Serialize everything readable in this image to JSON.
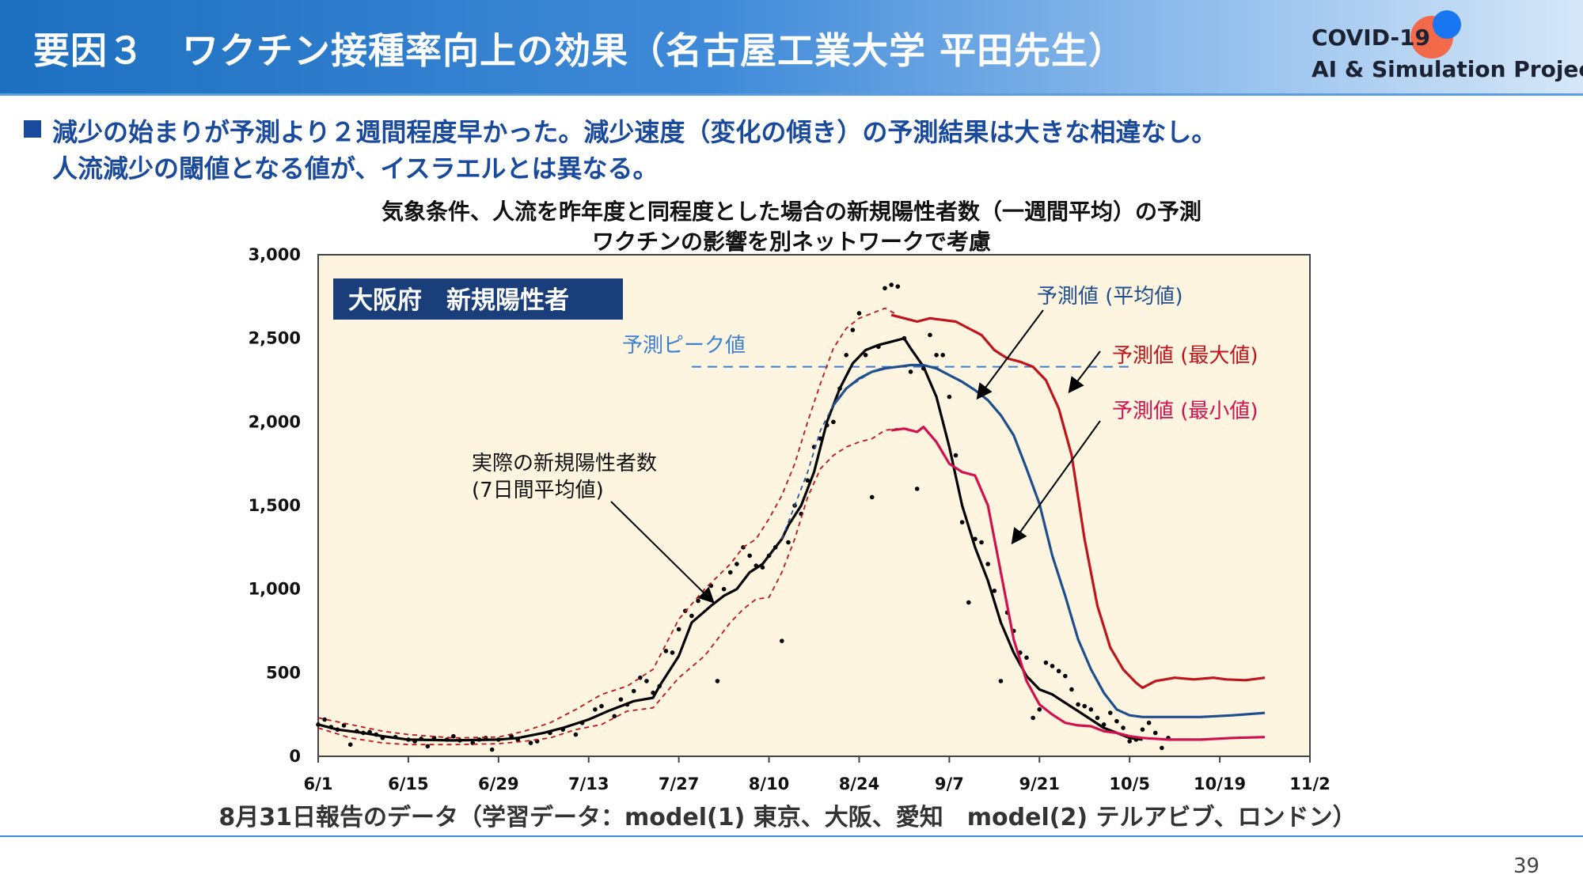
{
  "header": {
    "title": "要因３　ワクチン接種率向上の効果（名古屋工業大学 平田先生）",
    "logo_line1": "COVID-19",
    "logo_line2": "AI & Simulation Project"
  },
  "bullets": {
    "line1": "減少の始まりが予測より２週間程度早かった。減少速度（変化の傾き）の予測結果は大きな相違なし。",
    "line2": "人流減少の閾値となる値が、イスラエルとは異なる。"
  },
  "chart_title": {
    "line1": "気象条件、人流を昨年度と同程度とした場合の新規陽性者数（一週間平均）の予測",
    "line2": "ワクチンの影響を別ネットワークで考慮"
  },
  "footer_note": "8月31日報告のデータ（学習データ：model(1) 東京、大阪、愛知　model(2) テルアビブ、ロンドン）",
  "page_number": "39",
  "colors": {
    "header_blue": "#1d6fc0",
    "bullet_blue": "#1a4a9c",
    "plot_bg": "#fdf5df",
    "actual": "#000000",
    "forecast_mean": "#1f4e8c",
    "forecast_max": "#c0141c",
    "forecast_min": "#d21050",
    "peak_line": "#3d7fd0"
  },
  "chart_data": {
    "type": "line",
    "region_label": "大阪府　新規陽性者",
    "x_tick_labels": [
      "6/1",
      "6/15",
      "6/29",
      "7/13",
      "7/27",
      "8/10",
      "8/24",
      "9/7",
      "9/21",
      "10/5",
      "10/19",
      "11/2"
    ],
    "x_unit": "days since 6/1 (tick every 14 days)",
    "y_ticks": [
      0,
      500,
      1000,
      1500,
      2000,
      2500,
      3000
    ],
    "y_tick_labels": [
      "0",
      "500",
      "1,000",
      "1,500",
      "2,000",
      "2,500",
      "3,000"
    ],
    "ylim": [
      0,
      3000
    ],
    "xlim": [
      0,
      154
    ],
    "grid": false,
    "peak_value": 2330,
    "annotations": {
      "actual": "実際の新規陽性者数",
      "actual_sub": "(7日間平均値)",
      "peak": "予測ピーク値",
      "mean": "予測値 (平均値)",
      "max": "予測値 (最大値)",
      "min": "予測値 (最小値)"
    },
    "series": [
      {
        "name": "実際の新規陽性者数 (7日間平均値)",
        "style": "solid",
        "color": "#000000",
        "points": [
          [
            0,
            190
          ],
          [
            3,
            160
          ],
          [
            7,
            140
          ],
          [
            10,
            120
          ],
          [
            14,
            100
          ],
          [
            21,
            95
          ],
          [
            28,
            100
          ],
          [
            31,
            110
          ],
          [
            35,
            140
          ],
          [
            38,
            170
          ],
          [
            42,
            220
          ],
          [
            45,
            270
          ],
          [
            49,
            330
          ],
          [
            52,
            350
          ],
          [
            53,
            420
          ],
          [
            56,
            600
          ],
          [
            58,
            800
          ],
          [
            61,
            900
          ],
          [
            63,
            960
          ],
          [
            65,
            1000
          ],
          [
            67,
            1100
          ],
          [
            69,
            1150
          ],
          [
            70,
            1200
          ],
          [
            72,
            1300
          ],
          [
            73,
            1380
          ],
          [
            75,
            1500
          ],
          [
            77,
            1700
          ],
          [
            79,
            2000
          ],
          [
            81,
            2200
          ],
          [
            83,
            2350
          ],
          [
            85,
            2430
          ],
          [
            87,
            2460
          ],
          [
            89,
            2480
          ],
          [
            91,
            2500
          ],
          [
            92,
            2440
          ],
          [
            94,
            2330
          ],
          [
            96,
            2150
          ],
          [
            98,
            1850
          ],
          [
            100,
            1500
          ],
          [
            102,
            1250
          ],
          [
            104,
            1050
          ],
          [
            106,
            800
          ],
          [
            108,
            620
          ],
          [
            110,
            480
          ],
          [
            112,
            400
          ],
          [
            114,
            370
          ],
          [
            116,
            320
          ],
          [
            118,
            270
          ],
          [
            120,
            220
          ],
          [
            122,
            170
          ],
          [
            124,
            140
          ],
          [
            126,
            110
          ],
          [
            128,
            100
          ]
        ]
      },
      {
        "name": "予測値 (平均値)",
        "style": "solid",
        "color": "#1f4e8c",
        "points": [
          [
            80,
            2100
          ],
          [
            82,
            2200
          ],
          [
            84,
            2260
          ],
          [
            86,
            2300
          ],
          [
            88,
            2320
          ],
          [
            90,
            2330
          ],
          [
            92,
            2340
          ],
          [
            94,
            2340
          ],
          [
            96,
            2320
          ],
          [
            98,
            2280
          ],
          [
            100,
            2240
          ],
          [
            102,
            2190
          ],
          [
            104,
            2130
          ],
          [
            106,
            2040
          ],
          [
            108,
            1920
          ],
          [
            110,
            1720
          ],
          [
            112,
            1510
          ],
          [
            114,
            1200
          ],
          [
            116,
            960
          ],
          [
            118,
            700
          ],
          [
            120,
            520
          ],
          [
            122,
            380
          ],
          [
            124,
            280
          ],
          [
            126,
            245
          ],
          [
            128,
            235
          ],
          [
            132,
            235
          ],
          [
            137,
            235
          ],
          [
            142,
            245
          ],
          [
            147,
            260
          ]
        ]
      },
      {
        "name": "予測値 (最大値)",
        "style": "solid",
        "color": "#c0141c",
        "points": [
          [
            89,
            2640
          ],
          [
            91,
            2620
          ],
          [
            93,
            2600
          ],
          [
            95,
            2620
          ],
          [
            97,
            2610
          ],
          [
            99,
            2600
          ],
          [
            101,
            2560
          ],
          [
            103,
            2520
          ],
          [
            105,
            2430
          ],
          [
            107,
            2380
          ],
          [
            109,
            2360
          ],
          [
            111,
            2330
          ],
          [
            113,
            2250
          ],
          [
            115,
            2080
          ],
          [
            117,
            1800
          ],
          [
            119,
            1300
          ],
          [
            121,
            900
          ],
          [
            123,
            650
          ],
          [
            125,
            520
          ],
          [
            127,
            440
          ],
          [
            128,
            410
          ],
          [
            130,
            450
          ],
          [
            133,
            470
          ],
          [
            136,
            460
          ],
          [
            139,
            470
          ],
          [
            141,
            460
          ],
          [
            144,
            455
          ],
          [
            147,
            470
          ]
        ]
      },
      {
        "name": "予測値 (最小値)",
        "style": "solid",
        "color": "#d21050",
        "points": [
          [
            89,
            1950
          ],
          [
            91,
            1960
          ],
          [
            93,
            1940
          ],
          [
            94,
            1970
          ],
          [
            96,
            1880
          ],
          [
            98,
            1750
          ],
          [
            100,
            1700
          ],
          [
            102,
            1680
          ],
          [
            104,
            1500
          ],
          [
            106,
            1100
          ],
          [
            108,
            700
          ],
          [
            110,
            450
          ],
          [
            112,
            310
          ],
          [
            114,
            250
          ],
          [
            116,
            200
          ],
          [
            118,
            185
          ],
          [
            120,
            180
          ],
          [
            122,
            150
          ],
          [
            124,
            140
          ],
          [
            126,
            120
          ],
          [
            128,
            110
          ],
          [
            132,
            100
          ],
          [
            137,
            100
          ],
          [
            142,
            110
          ],
          [
            147,
            115
          ]
        ]
      },
      {
        "name": "予測上限",
        "style": "dashed",
        "color": "#c0141c",
        "points": [
          [
            0,
            230
          ],
          [
            5,
            190
          ],
          [
            10,
            150
          ],
          [
            14,
            130
          ],
          [
            21,
            110
          ],
          [
            28,
            115
          ],
          [
            32,
            150
          ],
          [
            36,
            200
          ],
          [
            40,
            280
          ],
          [
            44,
            370
          ],
          [
            48,
            420
          ],
          [
            52,
            520
          ],
          [
            56,
            820
          ],
          [
            60,
            1000
          ],
          [
            64,
            1150
          ],
          [
            66,
            1250
          ],
          [
            68,
            1300
          ],
          [
            70,
            1420
          ],
          [
            72,
            1560
          ],
          [
            74,
            1750
          ],
          [
            76,
            2000
          ],
          [
            78,
            2230
          ],
          [
            80,
            2440
          ],
          [
            82,
            2560
          ],
          [
            84,
            2620
          ],
          [
            86,
            2650
          ],
          [
            88,
            2680
          ],
          [
            90,
            2640
          ]
        ]
      },
      {
        "name": "予測下限",
        "style": "dashed",
        "color": "#c0141c",
        "points": [
          [
            0,
            170
          ],
          [
            5,
            110
          ],
          [
            10,
            80
          ],
          [
            14,
            70
          ],
          [
            21,
            70
          ],
          [
            28,
            75
          ],
          [
            32,
            90
          ],
          [
            36,
            110
          ],
          [
            40,
            160
          ],
          [
            44,
            190
          ],
          [
            48,
            270
          ],
          [
            52,
            290
          ],
          [
            56,
            470
          ],
          [
            60,
            600
          ],
          [
            64,
            800
          ],
          [
            66,
            880
          ],
          [
            68,
            940
          ],
          [
            70,
            950
          ],
          [
            72,
            1100
          ],
          [
            74,
            1300
          ],
          [
            76,
            1550
          ],
          [
            78,
            1720
          ],
          [
            80,
            1800
          ],
          [
            82,
            1850
          ],
          [
            84,
            1880
          ],
          [
            86,
            1900
          ],
          [
            88,
            1950
          ],
          [
            90,
            1960
          ]
        ]
      },
      {
        "name": "予測中央",
        "style": "dashed",
        "color": "#2a5a9c",
        "points": [
          [
            72,
            1300
          ],
          [
            74,
            1500
          ],
          [
            76,
            1700
          ],
          [
            78,
            1950
          ],
          [
            80,
            2100
          ],
          [
            82,
            2200
          ],
          [
            84,
            2250
          ],
          [
            86,
            2300
          ],
          [
            88,
            2330
          ]
        ]
      }
    ],
    "peak_line": {
      "x_start": 58,
      "x_end": 126,
      "y": 2330
    },
    "scatter_points": [
      [
        0,
        190
      ],
      [
        1,
        220
      ],
      [
        2,
        175
      ],
      [
        3,
        160
      ],
      [
        4,
        185
      ],
      [
        5,
        70
      ],
      [
        6,
        150
      ],
      [
        7,
        140
      ],
      [
        8,
        145
      ],
      [
        9,
        130
      ],
      [
        10,
        110
      ],
      [
        12,
        115
      ],
      [
        14,
        100
      ],
      [
        15,
        90
      ],
      [
        16,
        105
      ],
      [
        17,
        60
      ],
      [
        18,
        110
      ],
      [
        20,
        100
      ],
      [
        21,
        120
      ],
      [
        22,
        95
      ],
      [
        24,
        80
      ],
      [
        25,
        100
      ],
      [
        26,
        110
      ],
      [
        27,
        40
      ],
      [
        28,
        100
      ],
      [
        30,
        120
      ],
      [
        31,
        100
      ],
      [
        33,
        80
      ],
      [
        34,
        90
      ],
      [
        36,
        140
      ],
      [
        38,
        160
      ],
      [
        40,
        130
      ],
      [
        41,
        200
      ],
      [
        43,
        280
      ],
      [
        44,
        300
      ],
      [
        46,
        240
      ],
      [
        47,
        340
      ],
      [
        48,
        310
      ],
      [
        49,
        390
      ],
      [
        50,
        470
      ],
      [
        51,
        450
      ],
      [
        52,
        380
      ],
      [
        53,
        420
      ],
      [
        54,
        630
      ],
      [
        55,
        620
      ],
      [
        56,
        760
      ],
      [
        57,
        870
      ],
      [
        58,
        840
      ],
      [
        59,
        930
      ],
      [
        60,
        950
      ],
      [
        61,
        1020
      ],
      [
        62,
        450
      ],
      [
        63,
        1000
      ],
      [
        64,
        1100
      ],
      [
        65,
        1150
      ],
      [
        66,
        1250
      ],
      [
        67,
        1200
      ],
      [
        68,
        1140
      ],
      [
        69,
        1130
      ],
      [
        70,
        1200
      ],
      [
        71,
        1250
      ],
      [
        72,
        690
      ],
      [
        73,
        1280
      ],
      [
        74,
        1500
      ],
      [
        75,
        1450
      ],
      [
        76,
        1650
      ],
      [
        77,
        1850
      ],
      [
        78,
        1900
      ],
      [
        79,
        1980
      ],
      [
        80,
        2000
      ],
      [
        81,
        2200
      ],
      [
        82,
        2400
      ],
      [
        83,
        2550
      ],
      [
        84,
        2650
      ],
      [
        85,
        2400
      ],
      [
        86,
        1550
      ],
      [
        87,
        2450
      ],
      [
        88,
        2800
      ],
      [
        89,
        2820
      ],
      [
        90,
        2810
      ],
      [
        91,
        2500
      ],
      [
        92,
        2300
      ],
      [
        93,
        1600
      ],
      [
        94,
        2320
      ],
      [
        95,
        2520
      ],
      [
        96,
        2400
      ],
      [
        97,
        2400
      ],
      [
        98,
        2150
      ],
      [
        99,
        1800
      ],
      [
        100,
        1400
      ],
      [
        101,
        920
      ],
      [
        102,
        1300
      ],
      [
        103,
        1280
      ],
      [
        104,
        1150
      ],
      [
        105,
        990
      ],
      [
        106,
        450
      ],
      [
        107,
        860
      ],
      [
        108,
        750
      ],
      [
        109,
        620
      ],
      [
        110,
        590
      ],
      [
        111,
        230
      ],
      [
        112,
        280
      ],
      [
        113,
        560
      ],
      [
        114,
        540
      ],
      [
        115,
        510
      ],
      [
        116,
        480
      ],
      [
        117,
        400
      ],
      [
        118,
        310
      ],
      [
        119,
        300
      ],
      [
        120,
        280
      ],
      [
        121,
        230
      ],
      [
        122,
        190
      ],
      [
        123,
        260
      ],
      [
        124,
        210
      ],
      [
        125,
        170
      ],
      [
        126,
        90
      ],
      [
        127,
        100
      ],
      [
        128,
        160
      ],
      [
        129,
        200
      ],
      [
        130,
        140
      ],
      [
        131,
        50
      ],
      [
        132,
        110
      ]
    ]
  }
}
